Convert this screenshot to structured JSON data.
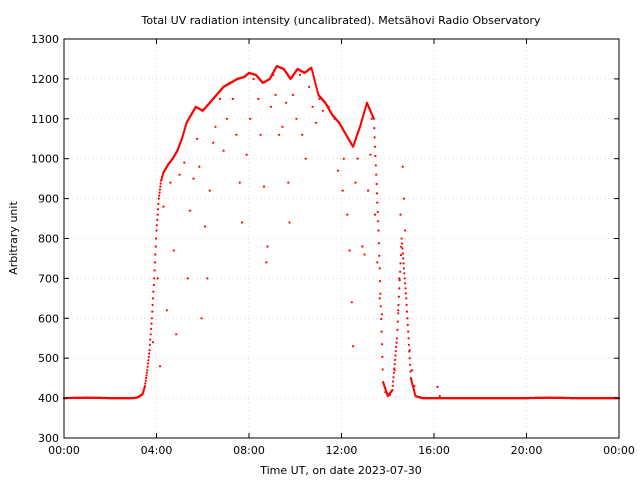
{
  "chart_data": {
    "type": "scatter",
    "title": "Total UV radiation intensity (uncalibrated). Metsähovi Radio Observatory",
    "xlabel": "Time UT, on date 2023-07-30",
    "ylabel": "Arbitrary unit",
    "xlim": [
      0,
      24
    ],
    "ylim": [
      300,
      1300
    ],
    "x_ticks": [
      0,
      4,
      8,
      12,
      16,
      20,
      24
    ],
    "x_tick_labels": [
      "00:00",
      "04:00",
      "08:00",
      "12:00",
      "16:00",
      "20:00",
      "00:00"
    ],
    "y_ticks": [
      300,
      400,
      500,
      600,
      700,
      800,
      900,
      1000,
      1100,
      1200,
      1300
    ],
    "y_tick_labels": [
      "300",
      "400",
      "500",
      "600",
      "700",
      "800",
      "900",
      "1000",
      "1100",
      "1200",
      "1300"
    ],
    "grid": true,
    "marker_color": "#ff0000",
    "series": [
      {
        "points": [
          [
            0.0,
            400
          ],
          [
            1.0,
            401
          ],
          [
            2.0,
            400
          ],
          [
            3.0,
            400
          ],
          [
            3.2,
            402
          ],
          [
            3.4,
            410
          ],
          [
            3.5,
            430
          ],
          [
            3.6,
            470
          ],
          [
            3.7,
            520
          ],
          [
            3.8,
            600
          ],
          [
            3.9,
            700
          ],
          [
            4.0,
            820
          ],
          [
            4.1,
            900
          ],
          [
            4.2,
            945
          ],
          [
            4.3,
            965
          ],
          [
            4.5,
            985
          ],
          [
            4.7,
            1000
          ],
          [
            4.9,
            1020
          ],
          [
            5.1,
            1050
          ],
          [
            5.3,
            1090
          ],
          [
            5.5,
            1110
          ],
          [
            5.7,
            1130
          ],
          [
            6.0,
            1120
          ],
          [
            6.3,
            1140
          ],
          [
            6.6,
            1160
          ],
          [
            6.9,
            1180
          ],
          [
            7.2,
            1190
          ],
          [
            7.5,
            1200
          ],
          [
            7.8,
            1205
          ],
          [
            8.0,
            1215
          ],
          [
            8.3,
            1210
          ],
          [
            8.6,
            1190
          ],
          [
            8.9,
            1200
          ],
          [
            9.2,
            1232
          ],
          [
            9.5,
            1225
          ],
          [
            9.8,
            1200
          ],
          [
            10.1,
            1225
          ],
          [
            10.4,
            1215
          ],
          [
            10.7,
            1228
          ],
          [
            11.0,
            1160
          ],
          [
            11.3,
            1140
          ],
          [
            11.6,
            1110
          ],
          [
            11.9,
            1090
          ],
          [
            12.2,
            1060
          ],
          [
            12.5,
            1030
          ],
          [
            12.8,
            1080
          ],
          [
            13.1,
            1140
          ],
          [
            13.4,
            1100
          ],
          [
            13.6,
            820
          ],
          [
            13.8,
            440
          ],
          [
            14.0,
            405
          ],
          [
            14.2,
            420
          ],
          [
            14.4,
            550
          ],
          [
            14.6,
            800
          ],
          [
            14.8,
            650
          ],
          [
            15.0,
            450
          ],
          [
            15.2,
            405
          ],
          [
            15.5,
            400
          ],
          [
            16.0,
            400
          ],
          [
            17.0,
            400
          ],
          [
            18.0,
            400
          ],
          [
            19.0,
            400
          ],
          [
            20.0,
            400
          ],
          [
            21.0,
            401
          ],
          [
            22.0,
            400
          ],
          [
            23.0,
            400
          ],
          [
            24.0,
            400
          ]
        ],
        "scatter_points": [
          [
            3.85,
            540
          ],
          [
            4.05,
            700
          ],
          [
            4.15,
            480
          ],
          [
            4.3,
            880
          ],
          [
            4.45,
            620
          ],
          [
            4.6,
            940
          ],
          [
            4.75,
            770
          ],
          [
            4.85,
            560
          ],
          [
            5.0,
            960
          ],
          [
            5.2,
            990
          ],
          [
            5.35,
            700
          ],
          [
            5.45,
            870
          ],
          [
            5.6,
            950
          ],
          [
            5.75,
            1050
          ],
          [
            5.85,
            980
          ],
          [
            5.95,
            600
          ],
          [
            6.1,
            830
          ],
          [
            6.2,
            700
          ],
          [
            6.3,
            920
          ],
          [
            6.45,
            1040
          ],
          [
            6.55,
            1080
          ],
          [
            6.75,
            1150
          ],
          [
            6.9,
            1020
          ],
          [
            7.05,
            1100
          ],
          [
            7.15,
            1190
          ],
          [
            7.3,
            1150
          ],
          [
            7.45,
            1060
          ],
          [
            7.6,
            940
          ],
          [
            7.7,
            840
          ],
          [
            7.9,
            1010
          ],
          [
            8.05,
            1100
          ],
          [
            8.2,
            1200
          ],
          [
            8.4,
            1150
          ],
          [
            8.5,
            1060
          ],
          [
            8.65,
            930
          ],
          [
            8.75,
            740
          ],
          [
            8.8,
            780
          ],
          [
            8.95,
            1130
          ],
          [
            9.05,
            1210
          ],
          [
            9.15,
            1160
          ],
          [
            9.3,
            1060
          ],
          [
            9.45,
            1080
          ],
          [
            9.6,
            1140
          ],
          [
            9.7,
            940
          ],
          [
            9.75,
            840
          ],
          [
            9.9,
            1160
          ],
          [
            10.05,
            1100
          ],
          [
            10.2,
            1210
          ],
          [
            10.3,
            1060
          ],
          [
            10.45,
            1000
          ],
          [
            10.6,
            1180
          ],
          [
            10.75,
            1130
          ],
          [
            10.9,
            1090
          ],
          [
            11.05,
            1150
          ],
          [
            11.2,
            1120
          ],
          [
            11.45,
            1130
          ],
          [
            11.7,
            1100
          ],
          [
            11.85,
            970
          ],
          [
            12.05,
            920
          ],
          [
            12.1,
            1000
          ],
          [
            12.25,
            860
          ],
          [
            12.35,
            770
          ],
          [
            12.45,
            640
          ],
          [
            12.5,
            530
          ],
          [
            12.6,
            940
          ],
          [
            12.7,
            1000
          ],
          [
            12.9,
            780
          ],
          [
            13.0,
            760
          ],
          [
            13.15,
            920
          ],
          [
            13.25,
            1010
          ],
          [
            13.3,
            1100
          ],
          [
            13.45,
            860
          ],
          [
            13.55,
            740
          ],
          [
            13.65,
            650
          ],
          [
            13.75,
            610
          ],
          [
            13.9,
            415
          ],
          [
            14.1,
            408
          ],
          [
            14.3,
            470
          ],
          [
            14.45,
            620
          ],
          [
            14.5,
            700
          ],
          [
            14.55,
            860
          ],
          [
            14.65,
            980
          ],
          [
            14.7,
            900
          ],
          [
            14.75,
            820
          ],
          [
            14.85,
            600
          ],
          [
            14.95,
            520
          ],
          [
            15.05,
            470
          ],
          [
            15.15,
            430
          ],
          [
            16.15,
            428
          ],
          [
            16.25,
            405
          ]
        ]
      }
    ]
  }
}
